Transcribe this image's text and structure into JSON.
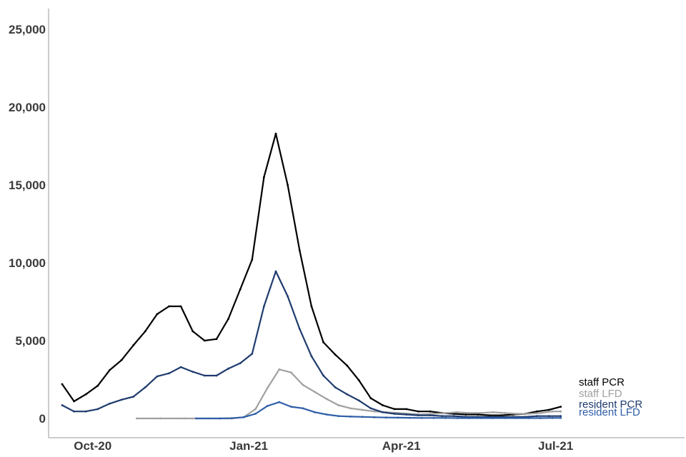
{
  "chart_data": {
    "type": "line",
    "title": "",
    "xlabel": "",
    "ylabel": "",
    "ylim": [
      0,
      26000
    ],
    "xlim": [
      "2020-09-05",
      "2021-09-15"
    ],
    "grid": false,
    "legend": "direct labels at line ends",
    "y_ticks": [
      {
        "value": 0,
        "label": "0"
      },
      {
        "value": 5000,
        "label": "5,000"
      },
      {
        "value": 10000,
        "label": "10,000"
      },
      {
        "value": 15000,
        "label": "15,000"
      },
      {
        "value": 20000,
        "label": "20,000"
      },
      {
        "value": 25000,
        "label": "25,000"
      }
    ],
    "x_ticks": [
      {
        "value": "2020-10-01",
        "label": "Oct-20"
      },
      {
        "value": "2021-01-01",
        "label": "Jan-21"
      },
      {
        "value": "2021-04-01",
        "label": "Apr-21"
      },
      {
        "value": "2021-07-01",
        "label": "Jul-21"
      }
    ],
    "series": [
      {
        "name": "staff PCR",
        "color": "#000000",
        "points": [
          [
            "2020-09-13",
            2200
          ],
          [
            "2020-09-20",
            1100
          ],
          [
            "2020-09-27",
            1550
          ],
          [
            "2020-10-04",
            2100
          ],
          [
            "2020-10-11",
            3100
          ],
          [
            "2020-10-18",
            3750
          ],
          [
            "2020-10-25",
            4700
          ],
          [
            "2020-11-01",
            5600
          ],
          [
            "2020-11-08",
            6700
          ],
          [
            "2020-11-15",
            7200
          ],
          [
            "2020-11-22",
            7200
          ],
          [
            "2020-11-29",
            5600
          ],
          [
            "2020-12-06",
            5000
          ],
          [
            "2020-12-13",
            5100
          ],
          [
            "2020-12-20",
            6400
          ],
          [
            "2020-12-27",
            8300
          ],
          [
            "2021-01-03",
            10200
          ],
          [
            "2021-01-10",
            15500
          ],
          [
            "2021-01-17",
            18300
          ],
          [
            "2021-01-24",
            15000
          ],
          [
            "2021-01-31",
            10800
          ],
          [
            "2021-02-07",
            7200
          ],
          [
            "2021-02-14",
            4900
          ],
          [
            "2021-02-21",
            4100
          ],
          [
            "2021-02-28",
            3400
          ],
          [
            "2021-03-07",
            2450
          ],
          [
            "2021-03-14",
            1300
          ],
          [
            "2021-03-21",
            850
          ],
          [
            "2021-03-28",
            600
          ],
          [
            "2021-04-04",
            600
          ],
          [
            "2021-04-11",
            450
          ],
          [
            "2021-04-18",
            450
          ],
          [
            "2021-04-25",
            350
          ],
          [
            "2021-05-02",
            300
          ],
          [
            "2021-05-09",
            250
          ],
          [
            "2021-05-16",
            250
          ],
          [
            "2021-05-23",
            200
          ],
          [
            "2021-05-30",
            200
          ],
          [
            "2021-06-06",
            250
          ],
          [
            "2021-06-13",
            300
          ],
          [
            "2021-06-20",
            450
          ],
          [
            "2021-06-27",
            550
          ],
          [
            "2021-07-04",
            750
          ]
        ]
      },
      {
        "name": "staff LFD",
        "color": "#a0a0a0",
        "points": [
          [
            "2020-10-27",
            0
          ],
          [
            "2020-11-10",
            0
          ],
          [
            "2020-11-24",
            0
          ],
          [
            "2020-12-08",
            0
          ],
          [
            "2020-12-22",
            0
          ],
          [
            "2020-12-29",
            80
          ],
          [
            "2021-01-05",
            600
          ],
          [
            "2021-01-12",
            1950
          ],
          [
            "2021-01-19",
            3150
          ],
          [
            "2021-01-26",
            2950
          ],
          [
            "2021-02-02",
            2150
          ],
          [
            "2021-02-09",
            1700
          ],
          [
            "2021-02-16",
            1250
          ],
          [
            "2021-02-23",
            850
          ],
          [
            "2021-03-02",
            650
          ],
          [
            "2021-03-09",
            550
          ],
          [
            "2021-03-16",
            450
          ],
          [
            "2021-03-23",
            400
          ],
          [
            "2021-03-30",
            350
          ],
          [
            "2021-04-06",
            300
          ],
          [
            "2021-04-13",
            250
          ],
          [
            "2021-04-20",
            300
          ],
          [
            "2021-04-27",
            350
          ],
          [
            "2021-05-04",
            400
          ],
          [
            "2021-05-11",
            350
          ],
          [
            "2021-05-18",
            350
          ],
          [
            "2021-05-25",
            400
          ],
          [
            "2021-06-01",
            350
          ],
          [
            "2021-06-08",
            300
          ],
          [
            "2021-06-15",
            300
          ],
          [
            "2021-06-22",
            350
          ],
          [
            "2021-06-29",
            450
          ],
          [
            "2021-07-04",
            450
          ]
        ]
      },
      {
        "name": "resident PCR",
        "color": "#1f3b6e",
        "points": [
          [
            "2020-09-13",
            850
          ],
          [
            "2020-09-20",
            450
          ],
          [
            "2020-09-27",
            450
          ],
          [
            "2020-10-04",
            600
          ],
          [
            "2020-10-11",
            950
          ],
          [
            "2020-10-18",
            1200
          ],
          [
            "2020-10-25",
            1400
          ],
          [
            "2020-11-01",
            2000
          ],
          [
            "2020-11-08",
            2700
          ],
          [
            "2020-11-15",
            2900
          ],
          [
            "2020-11-22",
            3300
          ],
          [
            "2020-11-29",
            3000
          ],
          [
            "2020-12-06",
            2750
          ],
          [
            "2020-12-13",
            2750
          ],
          [
            "2020-12-20",
            3200
          ],
          [
            "2020-12-27",
            3550
          ],
          [
            "2021-01-03",
            4150
          ],
          [
            "2021-01-10",
            7200
          ],
          [
            "2021-01-17",
            9450
          ],
          [
            "2021-01-24",
            7850
          ],
          [
            "2021-01-31",
            5750
          ],
          [
            "2021-02-07",
            4000
          ],
          [
            "2021-02-14",
            2750
          ],
          [
            "2021-02-21",
            2000
          ],
          [
            "2021-02-28",
            1550
          ],
          [
            "2021-03-07",
            1150
          ],
          [
            "2021-03-14",
            650
          ],
          [
            "2021-03-21",
            400
          ],
          [
            "2021-03-28",
            300
          ],
          [
            "2021-04-04",
            250
          ],
          [
            "2021-04-11",
            200
          ],
          [
            "2021-04-18",
            200
          ],
          [
            "2021-04-25",
            150
          ],
          [
            "2021-05-02",
            150
          ],
          [
            "2021-05-09",
            100
          ],
          [
            "2021-05-16",
            100
          ],
          [
            "2021-05-23",
            100
          ],
          [
            "2021-05-30",
            100
          ],
          [
            "2021-06-06",
            100
          ],
          [
            "2021-06-13",
            100
          ],
          [
            "2021-06-20",
            150
          ],
          [
            "2021-06-27",
            150
          ],
          [
            "2021-07-04",
            150
          ]
        ]
      },
      {
        "name": "resident LFD",
        "color": "#2e5ea8",
        "points": [
          [
            "2020-12-01",
            0
          ],
          [
            "2020-12-15",
            0
          ],
          [
            "2020-12-22",
            20
          ],
          [
            "2020-12-29",
            80
          ],
          [
            "2021-01-05",
            300
          ],
          [
            "2021-01-12",
            800
          ],
          [
            "2021-01-19",
            1050
          ],
          [
            "2021-01-26",
            750
          ],
          [
            "2021-02-02",
            650
          ],
          [
            "2021-02-09",
            400
          ],
          [
            "2021-02-16",
            250
          ],
          [
            "2021-02-23",
            150
          ],
          [
            "2021-03-02",
            120
          ],
          [
            "2021-03-09",
            100
          ],
          [
            "2021-03-16",
            80
          ],
          [
            "2021-03-23",
            60
          ],
          [
            "2021-03-30",
            50
          ],
          [
            "2021-04-06",
            40
          ],
          [
            "2021-04-13",
            30
          ],
          [
            "2021-04-20",
            30
          ],
          [
            "2021-04-27",
            30
          ],
          [
            "2021-05-04",
            25
          ],
          [
            "2021-05-11",
            25
          ],
          [
            "2021-05-18",
            25
          ],
          [
            "2021-05-25",
            25
          ],
          [
            "2021-06-01",
            25
          ],
          [
            "2021-06-08",
            25
          ],
          [
            "2021-06-15",
            25
          ],
          [
            "2021-06-22",
            25
          ],
          [
            "2021-06-29",
            30
          ],
          [
            "2021-07-04",
            30
          ]
        ]
      }
    ]
  }
}
